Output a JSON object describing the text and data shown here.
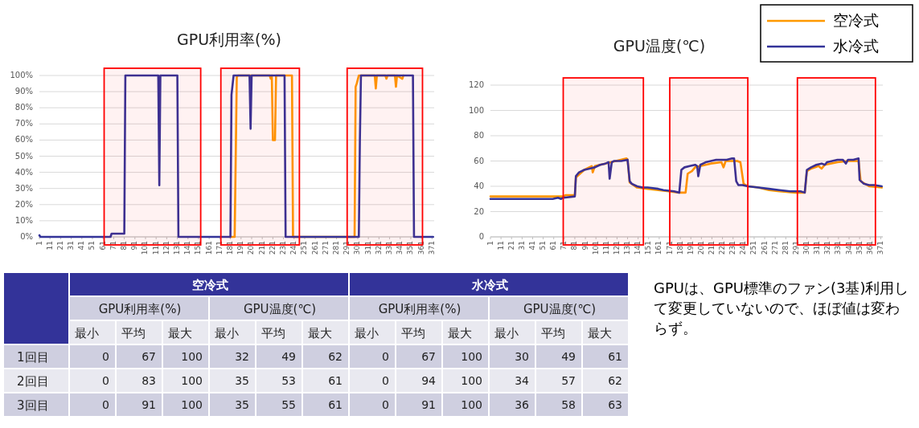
{
  "chart_data": [
    {
      "type": "line",
      "title": "GPU利用率(%)",
      "xlim": [
        1,
        373
      ],
      "ylim": [
        0,
        100
      ],
      "xticks": [
        1,
        11,
        21,
        31,
        41,
        51,
        61,
        71,
        81,
        91,
        101,
        111,
        121,
        131,
        141,
        151,
        161,
        171,
        181,
        191,
        201,
        211,
        221,
        231,
        241,
        251,
        261,
        271,
        281,
        291,
        301,
        311,
        321,
        331,
        341,
        351,
        361,
        371
      ],
      "yticks": [
        {
          "value": 0,
          "label": "0%"
        },
        {
          "value": 10,
          "label": "10%"
        },
        {
          "value": 20,
          "label": "20%"
        },
        {
          "value": 30,
          "label": "30%"
        },
        {
          "value": 40,
          "label": "40%"
        },
        {
          "value": 50,
          "label": "50%"
        },
        {
          "value": 60,
          "label": "60%"
        },
        {
          "value": 70,
          "label": "70%"
        },
        {
          "value": 80,
          "label": "80%"
        },
        {
          "value": 90,
          "label": "90%"
        },
        {
          "value": 100,
          "label": "100%"
        }
      ],
      "grid": "y",
      "bands": [
        {
          "axis": "x",
          "from": 62,
          "to": 153,
          "color": "#ff0000"
        },
        {
          "axis": "x",
          "from": 172,
          "to": 246,
          "color": "#ff0000"
        },
        {
          "axis": "x",
          "from": 291,
          "to": 362,
          "color": "#ff0000"
        }
      ],
      "series": [
        {
          "color": "#ff9900",
          "x": [
            180,
            185,
            187,
            188,
            218,
            219,
            220,
            221,
            223,
            224,
            239,
            240,
            245,
            296,
            298,
            299,
            300,
            302,
            317,
            318,
            319,
            327,
            328,
            329,
            336,
            337,
            338,
            343,
            344
          ],
          "values": [
            0,
            0,
            99,
            100,
            100,
            98,
            100,
            60,
            60,
            100,
            100,
            0,
            0,
            0,
            0,
            93,
            95,
            100,
            100,
            92,
            100,
            100,
            98,
            100,
            100,
            93,
            100,
            98,
            100
          ]
        },
        {
          "color": "#333399",
          "x": [
            1,
            2,
            68,
            69,
            81,
            82,
            113,
            114,
            115,
            131,
            132,
            181,
            182,
            184,
            199,
            200,
            201,
            232,
            233,
            302,
            303,
            304,
            353,
            354,
            372
          ],
          "values": [
            1,
            0,
            0,
            2,
            2,
            100,
            100,
            32,
            100,
            100,
            0,
            0,
            88,
            100,
            100,
            67,
            100,
            100,
            0,
            0,
            60,
            100,
            100,
            0,
            0
          ]
        }
      ]
    },
    {
      "type": "line",
      "title": "GPU温度(℃)",
      "xlim": [
        1,
        373
      ],
      "ylim": [
        0,
        120
      ],
      "xticks": [
        1,
        11,
        21,
        31,
        41,
        51,
        61,
        71,
        81,
        91,
        101,
        111,
        121,
        131,
        141,
        151,
        161,
        171,
        181,
        191,
        201,
        211,
        221,
        231,
        241,
        251,
        261,
        271,
        281,
        291,
        301,
        311,
        321,
        331,
        341,
        351,
        361,
        371
      ],
      "yticks": [
        0,
        20,
        40,
        60,
        80,
        100,
        120
      ],
      "grid": "y",
      "legend": "top right",
      "bands": [
        {
          "axis": "x",
          "from": 70,
          "to": 146,
          "color": "#ff0000"
        },
        {
          "axis": "x",
          "from": 171,
          "to": 245,
          "color": "#ff0000"
        },
        {
          "axis": "x",
          "from": 292,
          "to": 366,
          "color": "#ff0000"
        }
      ],
      "series": [
        {
          "name": "空冷式",
          "color": "#ff9900",
          "x": [
            1,
            70,
            72,
            81,
            82,
            90,
            97,
            98,
            100,
            110,
            120,
            130,
            131,
            133,
            140,
            150,
            160,
            170,
            180,
            186,
            188,
            192,
            195,
            200,
            205,
            210,
            220,
            222,
            224,
            235,
            238,
            241,
            245,
            255,
            265,
            275,
            290,
            299,
            301,
            305,
            312,
            315,
            318,
            330,
            340,
            350,
            352,
            360,
            372
          ],
          "values": [
            32,
            32,
            33,
            33,
            47,
            53,
            56,
            51,
            56,
            58,
            60,
            62,
            61,
            43,
            39,
            38,
            37,
            36,
            35,
            35,
            50,
            52,
            55,
            56,
            57,
            58,
            59,
            55,
            60,
            60,
            59,
            42,
            40,
            39,
            37,
            36,
            35,
            35,
            52,
            54,
            56,
            54,
            57,
            59,
            60,
            60,
            44,
            40,
            39
          ]
        },
        {
          "name": "水冷式",
          "color": "#333399",
          "x": [
            1,
            60,
            65,
            68,
            70,
            81,
            82,
            85,
            90,
            95,
            100,
            105,
            110,
            113,
            114,
            116,
            118,
            125,
            131,
            133,
            135,
            140,
            145,
            150,
            160,
            165,
            175,
            180,
            182,
            185,
            190,
            195,
            197,
            198,
            200,
            205,
            210,
            215,
            220,
            225,
            230,
            232,
            234,
            236,
            240,
            245,
            255,
            265,
            275,
            285,
            295,
            299,
            301,
            305,
            310,
            315,
            318,
            320,
            325,
            330,
            335,
            338,
            340,
            345,
            350,
            351,
            355,
            360,
            365,
            372
          ],
          "values": [
            30,
            30,
            31,
            30,
            31,
            32,
            48,
            51,
            53,
            54,
            55,
            57,
            58,
            59,
            46,
            59,
            60,
            60,
            61,
            44,
            42,
            40,
            39,
            39,
            38,
            37,
            36,
            35,
            53,
            55,
            56,
            57,
            56,
            48,
            57,
            59,
            60,
            61,
            61,
            61,
            62,
            62,
            44,
            41,
            41,
            40,
            39,
            38,
            37,
            36,
            36,
            35,
            53,
            55,
            57,
            58,
            57,
            59,
            60,
            61,
            61,
            58,
            61,
            61,
            62,
            45,
            42,
            41,
            41,
            40
          ]
        }
      ]
    },
    {
      "type": "heatmap",
      "annotations": [
        "空冷式",
        "水冷式",
        "GPU利用率(%)",
        "GPU温度(℃)",
        "GPU利用率(%)",
        "GPU温度(℃)"
      ],
      "categories": [
        "最小",
        "平均",
        "最大",
        "最小",
        "平均",
        "最大",
        "最小",
        "平均",
        "最大",
        "最小",
        "平均",
        "最大"
      ],
      "y_categories": [
        "1回目",
        "2回目",
        "3回目"
      ],
      "cells": [
        [
          0,
          67,
          100,
          32,
          49,
          62,
          0,
          67,
          100,
          30,
          49,
          61
        ],
        [
          0,
          83,
          100,
          35,
          53,
          61,
          0,
          94,
          100,
          34,
          57,
          62
        ],
        [
          0,
          91,
          100,
          35,
          55,
          61,
          0,
          91,
          100,
          36,
          58,
          63
        ]
      ],
      "data_labels": true
    },
    {
      "type": "other",
      "annotations": [
        "GPUは、GPU標準のファン(3基)利用して変更していないので、ほぼ値は変わらず。"
      ]
    }
  ]
}
